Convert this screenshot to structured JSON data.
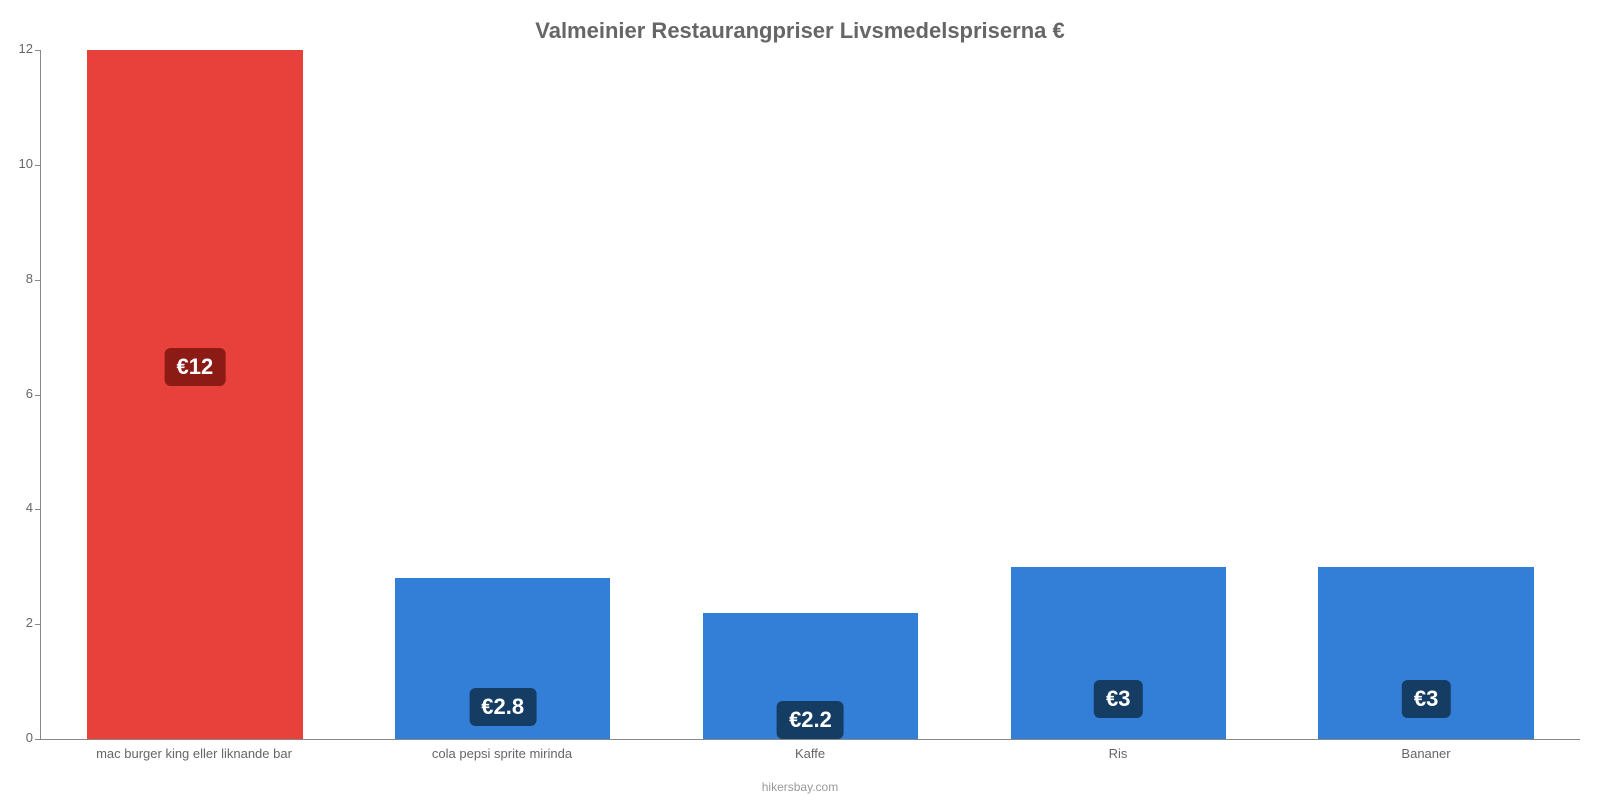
{
  "chart": {
    "type": "bar",
    "title": "Valmeinier Restaurangpriser Livsmedelspriserna €",
    "title_fontsize": 22,
    "title_color": "#666666",
    "attribution": "hikersbay.com",
    "background_color": "#ffffff",
    "axis_color": "#888888",
    "tick_label_color": "#666666",
    "tick_label_fontsize": 13,
    "ylim": [
      0,
      12
    ],
    "yticks": [
      0,
      2,
      4,
      6,
      8,
      10,
      12
    ],
    "bar_width": 0.7,
    "categories": [
      "mac burger king eller liknande bar",
      "cola pepsi sprite mirinda",
      "Kaffe",
      "Ris",
      "Bananer"
    ],
    "values": [
      12,
      2.8,
      2.2,
      3,
      3
    ],
    "value_labels": [
      "€12",
      "€2.8",
      "€2.2",
      "€3",
      "€3"
    ],
    "bar_colors": [
      "#e8403a",
      "#337ed6",
      "#337ed6",
      "#337ed6",
      "#337ed6"
    ],
    "bar_label_bg_colors": [
      "#8c1b15",
      "#153c63",
      "#153c63",
      "#153c63",
      "#153c63"
    ],
    "bar_label_color": "#ffffff",
    "bar_label_fontsize": 22,
    "bar_label_positions_pct": [
      46,
      80,
      85,
      77,
      77
    ]
  }
}
